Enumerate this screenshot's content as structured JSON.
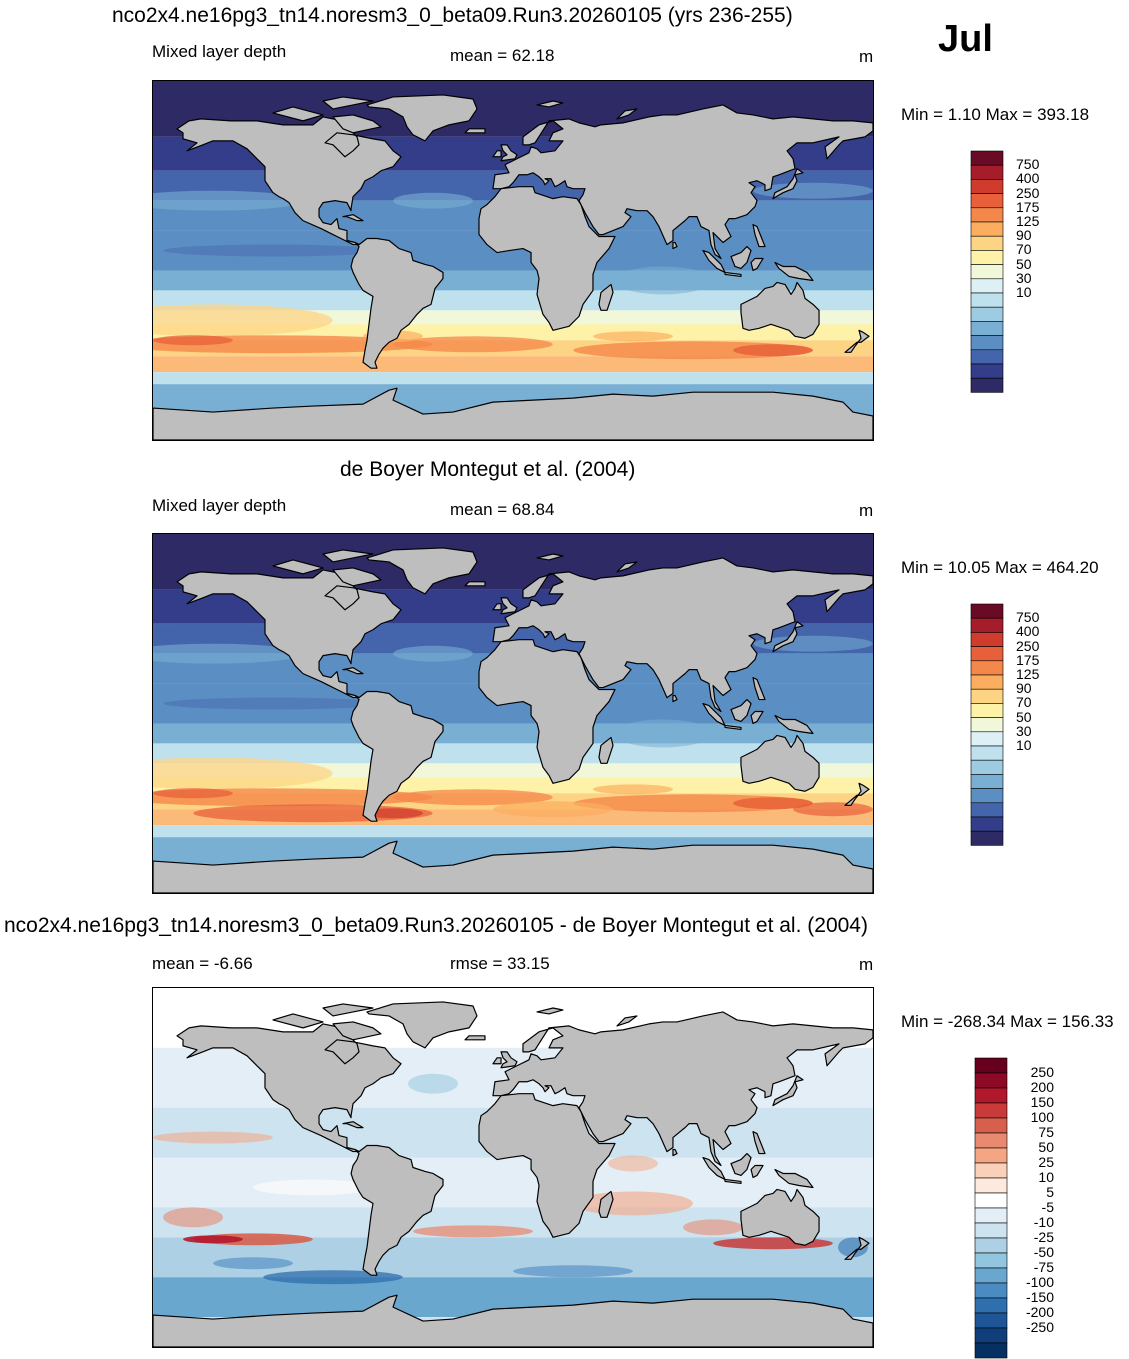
{
  "page": {
    "month": "Jul"
  },
  "panels": [
    {
      "title": "nco2x4.ne16pg3_tn14.noresm3_0_beta09.Run3.20260105 (yrs 236-255)",
      "left_label": "Mixed layer depth",
      "center_label": "mean =  62.18",
      "units": "m",
      "minmax": "Min =   1.10 Max = 393.18",
      "colorbar_labels": [
        "750",
        "400",
        "250",
        "175",
        "125",
        "90",
        "70",
        "50",
        "30",
        "10"
      ],
      "kind": "model"
    },
    {
      "title": "de Boyer Montegut et al. (2004)",
      "left_label": "Mixed layer depth",
      "center_label": "mean =  68.84",
      "units": "m",
      "minmax": "Min =  10.05 Max = 464.20",
      "colorbar_labels": [
        "750",
        "400",
        "250",
        "175",
        "125",
        "90",
        "70",
        "50",
        "30",
        "10"
      ],
      "kind": "obs"
    },
    {
      "title": "nco2x4.ne16pg3_tn14.noresm3_0_beta09.Run3.20260105 - de Boyer Montegut et al. (2004)",
      "left_label": "mean =  -6.66",
      "center_label": "rmse =  33.15",
      "units": "m",
      "minmax": "Min = -268.34 Max = 156.33",
      "colorbar_labels": [
        "250",
        "200",
        "150",
        "100",
        "75",
        "50",
        "25",
        "10",
        "5",
        "-5",
        "-10",
        "-25",
        "-50",
        "-75",
        "-100",
        "-150",
        "-200",
        "-250"
      ],
      "kind": "diff"
    }
  ],
  "colors": {
    "land": "#bebebe",
    "seq": [
      "#6a0b26",
      "#a51d2b",
      "#cf3b2d",
      "#e8603a",
      "#f4874a",
      "#fbae60",
      "#fdd484",
      "#fdf2a8",
      "#f0f8d9",
      "#dcf0f6",
      "#bfe1ee",
      "#9dcbe2",
      "#79afd3",
      "#5b8fc3",
      "#4465ac",
      "#333d8a",
      "#2d2a66"
    ],
    "div": [
      "#67001f",
      "#8c0a26",
      "#b2182b",
      "#c93a3a",
      "#d6604d",
      "#e88a70",
      "#f4a582",
      "#fbd0b9",
      "#fde9de",
      "#ffffff",
      "#e3eef6",
      "#cde3f0",
      "#aed0e5",
      "#92c5de",
      "#6aa7cf",
      "#4a8bc1",
      "#2f6fae",
      "#1d5597",
      "#0f3f7a",
      "#053061"
    ]
  }
}
